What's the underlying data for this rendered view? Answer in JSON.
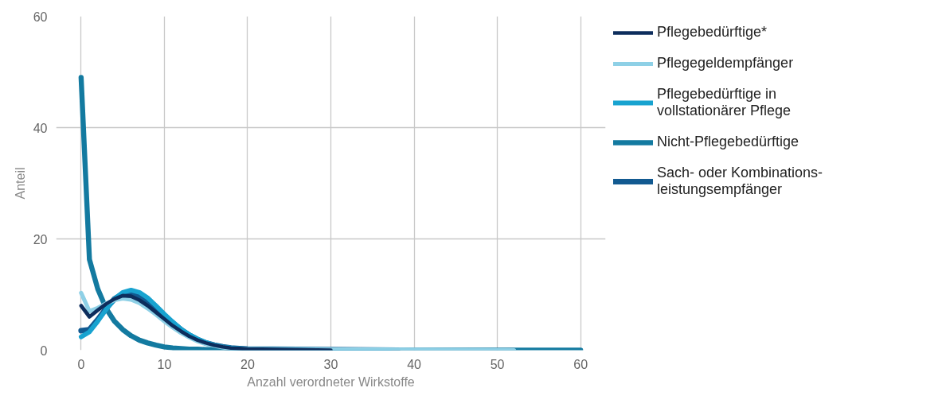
{
  "chart_data": {
    "type": "line",
    "xlabel": "Anzahl verordneter Wirkstoffe",
    "ylabel": "Anteil",
    "xlim": [
      -3,
      63
    ],
    "ylim": [
      0,
      60
    ],
    "xticks": [
      0,
      10,
      20,
      30,
      40,
      50,
      60
    ],
    "yticks": [
      0,
      20,
      40,
      60
    ],
    "grid": true,
    "legend": "right",
    "line_style": "solid",
    "marker": "none",
    "series": [
      {
        "name": "Pflegebedürftige*",
        "color": "#0d2d5c",
        "x": [
          0,
          1,
          2,
          3,
          4,
          5,
          6,
          7,
          8,
          9,
          10,
          11,
          12,
          13,
          14,
          15,
          16,
          17,
          18,
          19,
          20,
          30
        ],
        "values": [
          8,
          6,
          7.2,
          8.3,
          9.2,
          9.8,
          9.7,
          9,
          8,
          6.8,
          5.6,
          4.4,
          3.4,
          2.5,
          1.8,
          1.3,
          0.9,
          0.6,
          0.4,
          0.3,
          0.2,
          0
        ]
      },
      {
        "name": "Pflegegeldempfänger",
        "color": "#8ed0e6",
        "x": [
          0,
          1,
          2,
          3,
          4,
          5,
          6,
          7,
          8,
          9,
          10,
          11,
          12,
          13,
          14,
          15,
          16,
          17,
          18,
          19,
          20,
          52
        ],
        "values": [
          10.3,
          7,
          7.6,
          8.4,
          9,
          9.3,
          9.1,
          8.5,
          7.5,
          6.4,
          5.2,
          4.1,
          3.1,
          2.3,
          1.6,
          1.1,
          0.8,
          0.5,
          0.3,
          0.2,
          0.2,
          0
        ]
      },
      {
        "name": "Pflegebedürftige in vollstationärer Pflege",
        "color": "#18a3d0",
        "x": [
          0,
          1,
          2,
          3,
          4,
          5,
          6,
          7,
          8,
          9,
          10,
          11,
          12,
          13,
          14,
          15,
          16,
          17,
          18,
          19,
          20,
          37
        ],
        "values": [
          2.4,
          3.3,
          5.2,
          7.3,
          9.2,
          10.4,
          10.8,
          10.4,
          9.4,
          8,
          6.5,
          5.1,
          3.8,
          2.8,
          2,
          1.4,
          0.9,
          0.6,
          0.4,
          0.3,
          0.2,
          0
        ]
      },
      {
        "name": "Nicht-Pflegebedürftige",
        "color": "#137aa0",
        "x": [
          0,
          1,
          2,
          3,
          4,
          5,
          6,
          7,
          8,
          9,
          10,
          11,
          12,
          13,
          14,
          15,
          16,
          17,
          18,
          19,
          20,
          60
        ],
        "values": [
          49,
          16.3,
          11,
          7.5,
          5.2,
          3.7,
          2.6,
          1.8,
          1.3,
          0.9,
          0.6,
          0.4,
          0.3,
          0.2,
          0.2,
          0.1,
          0.1,
          0.1,
          0.1,
          0,
          0,
          0
        ]
      },
      {
        "name": "Sach- oder Kombinations-leistungsempfänger",
        "color": "#125a91",
        "x": [
          0,
          1,
          2,
          3,
          4,
          5,
          6,
          7,
          8,
          9,
          10,
          11,
          12,
          13,
          14,
          15,
          16,
          17,
          18,
          19,
          20,
          38
        ],
        "values": [
          3.5,
          3.7,
          5.5,
          7.5,
          9.2,
          10.1,
          10.3,
          9.8,
          8.9,
          7.6,
          6.2,
          4.9,
          3.7,
          2.7,
          1.9,
          1.3,
          0.9,
          0.6,
          0.4,
          0.3,
          0.2,
          0
        ]
      }
    ]
  }
}
